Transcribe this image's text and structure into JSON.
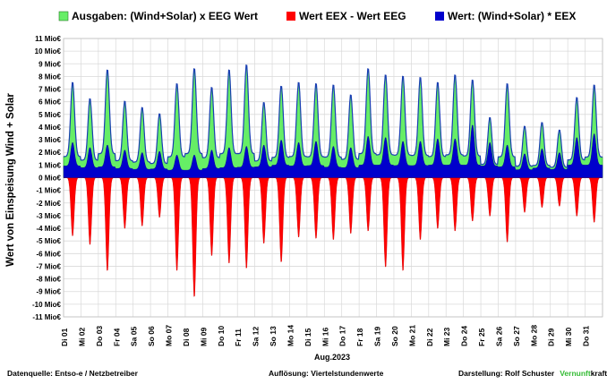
{
  "chart_data": {
    "type": "area",
    "xlabel": "Aug.2023",
    "ylabel": "Wert von Einspeisung Wind + Solar",
    "ylim": [
      -11,
      11
    ],
    "y_unit_suffix": " Mio€",
    "y_ticks": [
      11,
      10,
      9,
      8,
      7,
      6,
      5,
      4,
      3,
      2,
      1,
      0,
      -1,
      -2,
      -3,
      -4,
      -5,
      -6,
      -7,
      -8,
      -9,
      -10,
      -11
    ],
    "grid": true,
    "legend_position": "top",
    "x_ticks": [
      "Di 01",
      "Mi 02",
      "Do 03",
      "Fr 04",
      "Sa 05",
      "So 06",
      "Mo 07",
      "Di 08",
      "Mi 09",
      "Do 10",
      "Fr 11",
      "Sa 12",
      "So 13",
      "Mo 14",
      "Di 15",
      "Mi 16",
      "Do 17",
      "Fr 18",
      "Sa 19",
      "So 20",
      "Mo 21",
      "Di 22",
      "Mi 23",
      "Do 24",
      "Fr 25",
      "Sa 26",
      "So 27",
      "Mo 28",
      "Di 29",
      "Mi 30",
      "Do 31"
    ],
    "series": [
      {
        "name": "Ausgaben: (Wind+Solar) x EEG Wert",
        "color": "#66ee66",
        "daily_peak": [
          7.6,
          6.3,
          8.6,
          6.1,
          5.6,
          5.1,
          7.5,
          8.7,
          7.2,
          8.6,
          9.0,
          6.0,
          7.3,
          7.6,
          7.5,
          7.4,
          6.6,
          8.7,
          8.2,
          8.1,
          8.0,
          7.6,
          8.2,
          7.8,
          4.8,
          7.5,
          4.1,
          4.4,
          3.8,
          6.4,
          7.4
        ]
      },
      {
        "name": "Wert EEX - Wert EEG",
        "color": "#ff0000",
        "daily_trough": [
          -4.7,
          -5.4,
          -7.5,
          -4.1,
          -3.9,
          -3.2,
          -7.5,
          -9.6,
          -6.3,
          -6.9,
          -7.3,
          -5.3,
          -6.8,
          -4.8,
          -4.9,
          -5.0,
          -4.5,
          -4.3,
          -7.2,
          -7.5,
          -5.0,
          -4.1,
          -4.3,
          -3.5,
          -3.1,
          -5.2,
          -2.8,
          -2.4,
          -2.3,
          -3.1,
          -3.6
        ]
      },
      {
        "name": "Wert: (Wind+Solar) * EEX",
        "color": "#0000cc",
        "daily_peak": [
          2.8,
          2.4,
          2.6,
          2.2,
          2.0,
          2.1,
          1.8,
          1.8,
          2.2,
          2.4,
          2.5,
          2.6,
          3.0,
          2.8,
          2.9,
          2.5,
          2.4,
          3.3,
          3.2,
          2.9,
          2.9,
          3.1,
          3.1,
          4.2,
          2.8,
          2.6,
          1.9,
          2.3,
          2.0,
          3.2,
          3.5
        ]
      }
    ]
  },
  "footer": {
    "source": "Datenquelle:  Entso-e  / Netzbetreiber",
    "resolution": "Auflösung: Viertelstundenwerte",
    "credit_prefix": "Darstellung:  Rolf Schuster",
    "brand_a": "Vernunft",
    "brand_b": "kraft",
    "brand_a_color": "#33bb33"
  }
}
